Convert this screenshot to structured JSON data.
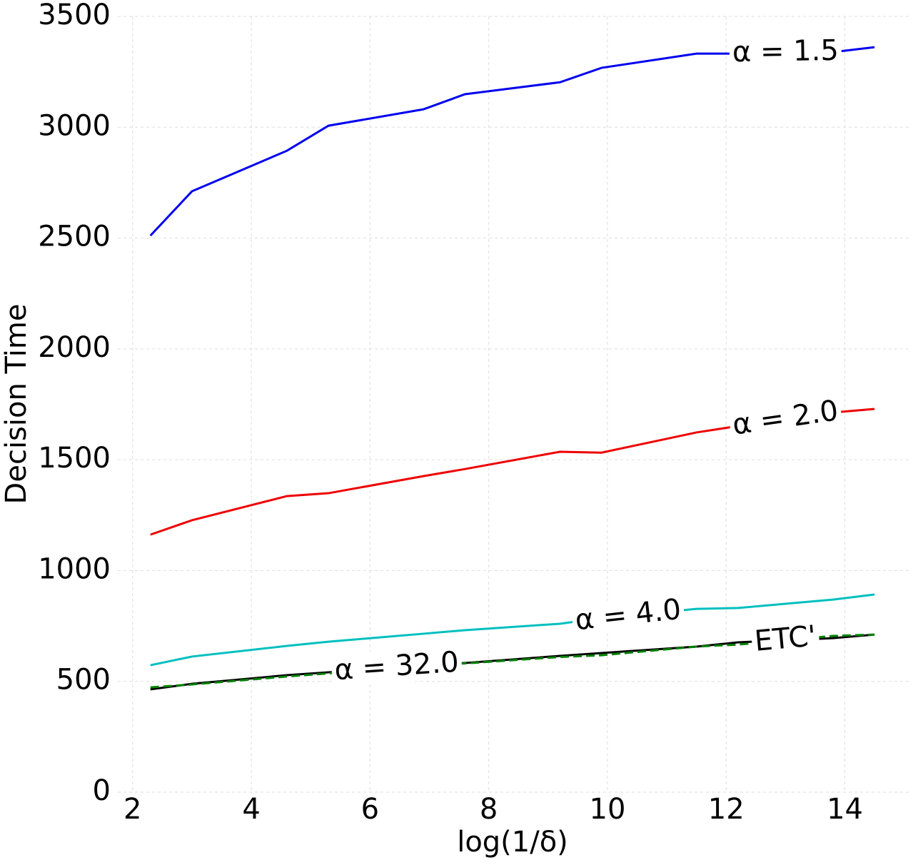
{
  "chart_data": {
    "type": "line",
    "xlabel": "log(1/δ)",
    "ylabel": "Decision Time",
    "x": [
      2.3,
      3.0,
      4.6,
      5.3,
      6.9,
      7.6,
      9.2,
      9.9,
      11.5,
      12.2,
      13.8,
      14.5
    ],
    "series": [
      {
        "name": "α = 1.5",
        "color": "#0000ee",
        "values": [
          2511,
          2711,
          2894,
          3007,
          3081,
          3149,
          3203,
          3268,
          3332,
          3332,
          3339,
          3361
        ]
      },
      {
        "name": "α = 2.0",
        "color": "#ee0000",
        "values": [
          1162,
          1227,
          1336,
          1349,
          1426,
          1458,
          1536,
          1532,
          1623,
          1652,
          1713,
          1729
        ]
      },
      {
        "name": "α = 4.0",
        "color": "#00bfbf",
        "values": [
          573,
          612,
          660,
          679,
          715,
          731,
          760,
          786,
          827,
          831,
          869,
          892
        ]
      },
      {
        "name": "α = 32.0",
        "color": "#000000",
        "values": [
          464,
          489,
          528,
          541,
          573,
          583,
          615,
          628,
          657,
          676,
          695,
          711
        ]
      },
      {
        "name": "ETC'",
        "color": "#008000",
        "dashed": true,
        "values": [
          473,
          486,
          522,
          536,
          570,
          581,
          610,
          618,
          657,
          666,
          705,
          711
        ]
      }
    ],
    "xlim": [
      1.75,
      15.1
    ],
    "ylim": [
      0,
      3500
    ],
    "xticks": [
      2,
      4,
      6,
      8,
      10,
      12,
      14
    ],
    "yticks": [
      0,
      500,
      1000,
      1500,
      2000,
      2500,
      3000,
      3500
    ],
    "grid": true
  }
}
